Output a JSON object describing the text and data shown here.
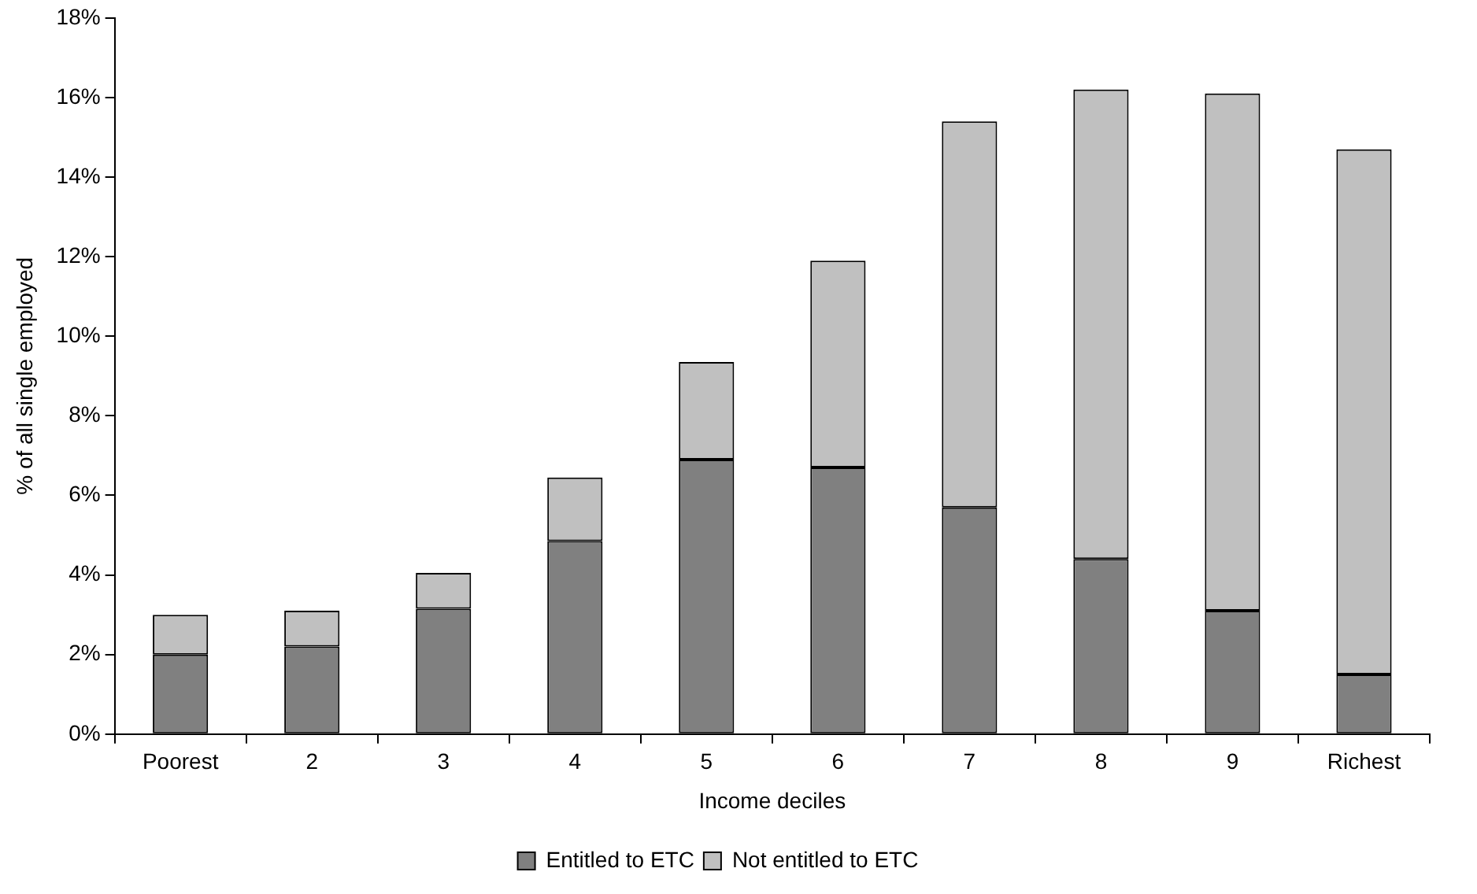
{
  "chart_data": {
    "type": "bar",
    "stacked": true,
    "xlabel": "Income deciles",
    "ylabel": "% of all single employed",
    "categories": [
      "Poorest",
      "2",
      "3",
      "4",
      "5",
      "6",
      "7",
      "8",
      "9",
      "Richest"
    ],
    "series": [
      {
        "name": "Entitled to ETC",
        "color": "#808080",
        "values": [
          2.0,
          2.2,
          3.15,
          4.85,
          6.9,
          6.7,
          5.7,
          4.4,
          3.1,
          1.5
        ]
      },
      {
        "name": "Not entitled to ETC",
        "color": "#c0c0c0",
        "values": [
          1.0,
          0.9,
          0.9,
          1.6,
          2.45,
          5.2,
          9.7,
          11.8,
          13.0,
          13.2
        ]
      }
    ],
    "ylim": [
      0,
      18
    ],
    "yticks": [
      {
        "value": 0,
        "label": "0%"
      },
      {
        "value": 2,
        "label": "2%"
      },
      {
        "value": 4,
        "label": "4%"
      },
      {
        "value": 6,
        "label": "6%"
      },
      {
        "value": 8,
        "label": "8%"
      },
      {
        "value": 10,
        "label": "10%"
      },
      {
        "value": 12,
        "label": "12%"
      },
      {
        "value": 14,
        "label": "14%"
      },
      {
        "value": 16,
        "label": "16%"
      },
      {
        "value": 18,
        "label": "18%"
      }
    ],
    "grid": false,
    "legend": "bottom"
  }
}
